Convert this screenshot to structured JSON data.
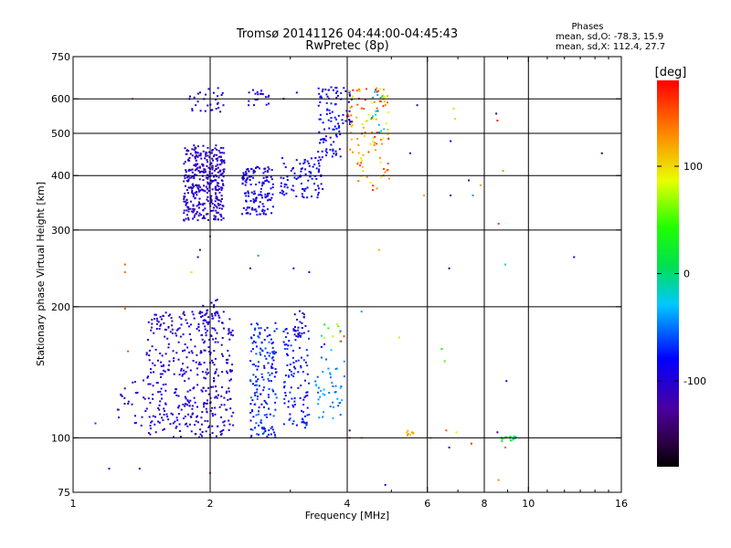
{
  "chart_data": {
    "type": "scatter",
    "title": "Tromsø 20141126 04:44:00-04:45:43",
    "subtitle": "RwPretec (8p)",
    "xlabel": "Frequency [MHz]",
    "ylabel": "Stationary phase Virtual Height [km]",
    "xscale": "log",
    "yscale": "log",
    "xlim": [
      1,
      16
    ],
    "ylim": [
      75,
      750
    ],
    "x_ticks": [
      1,
      2,
      4,
      6,
      8,
      10,
      16
    ],
    "y_ticks": [
      75,
      100,
      200,
      300,
      400,
      500,
      600,
      750
    ],
    "x_gridlines": [
      2,
      4,
      6,
      8,
      10
    ],
    "y_gridlines": [
      100,
      200,
      300,
      400,
      500,
      600
    ],
    "grid": true,
    "phase_stats": {
      "title": "Phases",
      "line_o": "mean, sd,O: -78.3, 15.9",
      "line_x": "mean, sd,X: 112.4, 27.7"
    },
    "colorbar": {
      "label": "[deg]",
      "min": -180,
      "max": 180,
      "ticks": [
        100,
        0,
        -100
      ],
      "colormap": "rainbow"
    },
    "clusters": [
      {
        "x": [
          1.75,
          2.15
        ],
        "y": [
          315,
          470
        ],
        "phase": [
          -115,
          -95
        ],
        "n": 380
      },
      {
        "x": [
          1.8,
          2.15
        ],
        "y": [
          560,
          640
        ],
        "phase": [
          -110,
          -85
        ],
        "n": 30
      },
      {
        "x": [
          2.35,
          2.75
        ],
        "y": [
          325,
          420
        ],
        "phase": [
          -105,
          -80
        ],
        "n": 140
      },
      {
        "x": [
          2.4,
          2.7
        ],
        "y": [
          580,
          630
        ],
        "phase": [
          -105,
          -85
        ],
        "n": 20
      },
      {
        "x": [
          2.85,
          3.55
        ],
        "y": [
          355,
          440
        ],
        "phase": [
          -100,
          -75
        ],
        "n": 90
      },
      {
        "x": [
          3.45,
          3.9
        ],
        "y": [
          440,
          640
        ],
        "phase": [
          -100,
          -70
        ],
        "n": 90
      },
      {
        "x": [
          3.9,
          4.1
        ],
        "y": [
          520,
          640
        ],
        "phase": [
          -110,
          -90
        ],
        "n": 20
      },
      {
        "x": [
          4.0,
          4.95
        ],
        "y": [
          370,
          640
        ],
        "phase": [
          80,
          170
        ],
        "n": 110
      },
      {
        "x": [
          4.5,
          4.85
        ],
        "y": [
          500,
          640
        ],
        "phase": [
          -60,
          10
        ],
        "n": 15
      },
      {
        "x": [
          1.45,
          2.25
        ],
        "y": [
          100,
          195
        ],
        "phase": [
          -115,
          -90
        ],
        "n": 420
      },
      {
        "x": [
          1.9,
          2.1
        ],
        "y": [
          165,
          210
        ],
        "phase": [
          -110,
          -90
        ],
        "n": 40
      },
      {
        "x": [
          2.45,
          2.8
        ],
        "y": [
          100,
          185
        ],
        "phase": [
          -95,
          -50
        ],
        "n": 170
      },
      {
        "x": [
          2.9,
          3.3
        ],
        "y": [
          105,
          180
        ],
        "phase": [
          -100,
          -60
        ],
        "n": 110
      },
      {
        "x": [
          3.05,
          3.25
        ],
        "y": [
          170,
          200
        ],
        "phase": [
          -110,
          -90
        ],
        "n": 20
      },
      {
        "x": [
          3.4,
          3.95
        ],
        "y": [
          110,
          155
        ],
        "phase": [
          -60,
          -30
        ],
        "n": 45
      },
      {
        "x": [
          3.5,
          3.95
        ],
        "y": [
          158,
          185
        ],
        "phase": [
          -100,
          160
        ],
        "n": 15
      },
      {
        "x": [
          1.25,
          1.45
        ],
        "y": [
          106,
          138
        ],
        "phase": [
          -120,
          -90
        ],
        "n": 25
      },
      {
        "x": [
          5.4,
          5.6
        ],
        "y": [
          101,
          104
        ],
        "phase": [
          100,
          130
        ],
        "n": 8
      },
      {
        "x": [
          8.7,
          9.4
        ],
        "y": [
          98,
          101
        ],
        "phase": [
          -10,
          40
        ],
        "n": 18
      }
    ],
    "scattered_points": [
      {
        "x": 1.2,
        "y": 85,
        "phase": -100
      },
      {
        "x": 1.12,
        "y": 108,
        "phase": -60
      },
      {
        "x": 1.3,
        "y": 250,
        "phase": 150
      },
      {
        "x": 1.3,
        "y": 240,
        "phase": 140
      },
      {
        "x": 1.3,
        "y": 198,
        "phase": 150
      },
      {
        "x": 1.32,
        "y": 158,
        "phase": 150
      },
      {
        "x": 1.4,
        "y": 85,
        "phase": -120
      },
      {
        "x": 1.35,
        "y": 600,
        "phase": 150
      },
      {
        "x": 1.88,
        "y": 260,
        "phase": -110
      },
      {
        "x": 1.9,
        "y": 270,
        "phase": -100
      },
      {
        "x": 2.0,
        "y": 290,
        "phase": 160
      },
      {
        "x": 1.82,
        "y": 240,
        "phase": 100
      },
      {
        "x": 2.0,
        "y": 83,
        "phase": 160
      },
      {
        "x": 2.55,
        "y": 262,
        "phase": -40
      },
      {
        "x": 2.45,
        "y": 245,
        "phase": -110
      },
      {
        "x": 3.05,
        "y": 245,
        "phase": -100
      },
      {
        "x": 3.3,
        "y": 240,
        "phase": -110
      },
      {
        "x": 2.9,
        "y": 600,
        "phase": -110
      },
      {
        "x": 3.1,
        "y": 620,
        "phase": -90
      },
      {
        "x": 4.05,
        "y": 100,
        "phase": 160
      },
      {
        "x": 4.05,
        "y": 104,
        "phase": -150
      },
      {
        "x": 4.3,
        "y": 100,
        "phase": 130
      },
      {
        "x": 4.3,
        "y": 195,
        "phase": -40
      },
      {
        "x": 4.85,
        "y": 78,
        "phase": -110
      },
      {
        "x": 4.7,
        "y": 270,
        "phase": 120
      },
      {
        "x": 5.2,
        "y": 170,
        "phase": 100
      },
      {
        "x": 5.5,
        "y": 450,
        "phase": -110
      },
      {
        "x": 5.9,
        "y": 360,
        "phase": 120
      },
      {
        "x": 5.7,
        "y": 580,
        "phase": -110
      },
      {
        "x": 6.1,
        "y": 100,
        "phase": 40
      },
      {
        "x": 6.45,
        "y": 160,
        "phase": 40
      },
      {
        "x": 6.55,
        "y": 150,
        "phase": 50
      },
      {
        "x": 6.6,
        "y": 104,
        "phase": 150
      },
      {
        "x": 6.7,
        "y": 95,
        "phase": -110
      },
      {
        "x": 6.7,
        "y": 245,
        "phase": -150
      },
      {
        "x": 6.75,
        "y": 360,
        "phase": -110
      },
      {
        "x": 6.9,
        "y": 540,
        "phase": 100
      },
      {
        "x": 6.75,
        "y": 480,
        "phase": -80
      },
      {
        "x": 6.85,
        "y": 570,
        "phase": 100
      },
      {
        "x": 6.95,
        "y": 103,
        "phase": 90
      },
      {
        "x": 7.4,
        "y": 390,
        "phase": -110
      },
      {
        "x": 7.5,
        "y": 97,
        "phase": 160
      },
      {
        "x": 7.55,
        "y": 360,
        "phase": -40
      },
      {
        "x": 7.85,
        "y": 380,
        "phase": 120
      },
      {
        "x": 8.5,
        "y": 555,
        "phase": -150
      },
      {
        "x": 8.55,
        "y": 535,
        "phase": 170
      },
      {
        "x": 8.55,
        "y": 103,
        "phase": -140
      },
      {
        "x": 8.6,
        "y": 80,
        "phase": 130
      },
      {
        "x": 8.6,
        "y": 310,
        "phase": 160
      },
      {
        "x": 8.8,
        "y": 410,
        "phase": 130
      },
      {
        "x": 8.9,
        "y": 250,
        "phase": -20
      },
      {
        "x": 8.9,
        "y": 95,
        "phase": 140
      },
      {
        "x": 8.95,
        "y": 135,
        "phase": -110
      },
      {
        "x": 12.6,
        "y": 260,
        "phase": -90
      },
      {
        "x": 14.5,
        "y": 450,
        "phase": -150
      }
    ]
  }
}
